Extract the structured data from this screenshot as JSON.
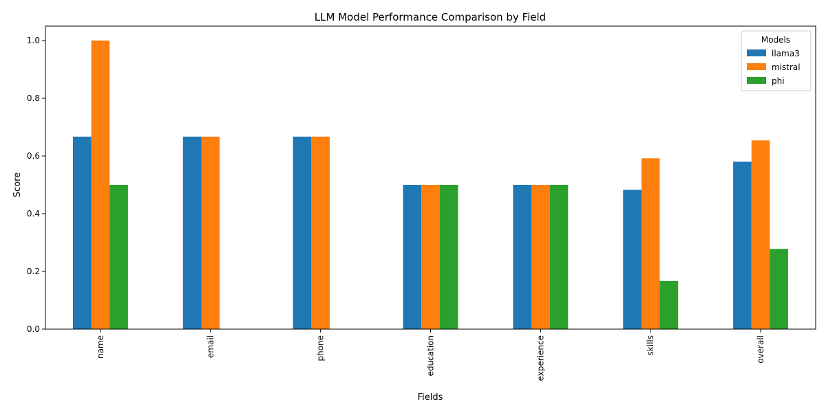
{
  "chart_data": {
    "type": "bar",
    "title": "LLM Model Performance Comparison by Field",
    "xlabel": "Fields",
    "ylabel": "Score",
    "ylim": [
      0,
      1.05
    ],
    "yticks": [
      "0.0",
      "0.2",
      "0.4",
      "0.6",
      "0.8",
      "1.0"
    ],
    "categories": [
      "name",
      "email",
      "phone",
      "education",
      "experience",
      "skills",
      "overall"
    ],
    "legend": {
      "title": "Models",
      "placement": "top-right"
    },
    "grid": false,
    "series": [
      {
        "name": "llama3",
        "color": "#1f77b4",
        "values": [
          0.667,
          0.667,
          0.667,
          0.5,
          0.5,
          0.483,
          0.58
        ]
      },
      {
        "name": "mistral",
        "color": "#ff7f0e",
        "values": [
          1.0,
          0.667,
          0.667,
          0.5,
          0.5,
          0.592,
          0.654
        ]
      },
      {
        "name": "phi",
        "color": "#2ca02c",
        "values": [
          0.5,
          0.0,
          0.0,
          0.5,
          0.5,
          0.167,
          0.278
        ]
      }
    ]
  }
}
